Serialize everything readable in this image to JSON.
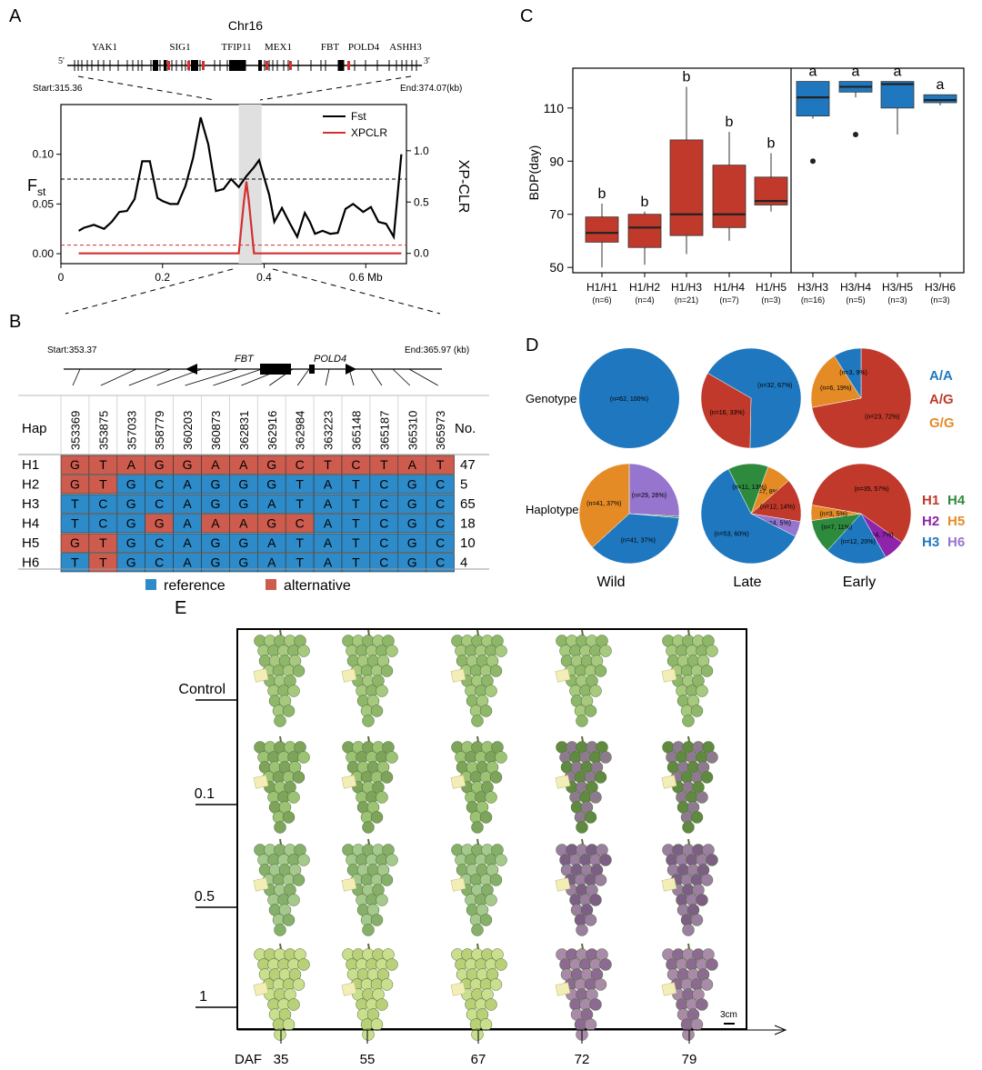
{
  "panels": {
    "A": "A",
    "B": "B",
    "C": "C",
    "D": "D",
    "E": "E"
  },
  "colors": {
    "fst": "#000000",
    "xpclr": "#d32f2f",
    "ref": "#2e8bc9",
    "alt": "#cd5c4e",
    "box_h1": "#c0392b",
    "box_h3": "#1f78bf",
    "H1": "#c0392b",
    "H2": "#8e24aa",
    "H3": "#1f78bf",
    "H4": "#2e8b3e",
    "H5": "#e58b26",
    "H6": "#9575cd",
    "AA": "#1f78bf",
    "AG": "#c0392b",
    "GG": "#e58b26"
  },
  "panelA": {
    "chrom": "Chr16",
    "five": "5'",
    "three": "3'",
    "genes": [
      "YAK1",
      "SIG1",
      "TFIP11",
      "MEX1",
      "FBT",
      "POLD4",
      "ASHH3"
    ],
    "start": "Start:315.36",
    "end": "End:374.07(kb)",
    "ylabel_left": "F",
    "ylabel_left_sub": "st",
    "ylabel_right": "XP-CLR",
    "x_ticks": [
      "0",
      "0.2",
      "0.4",
      "0.6 Mb"
    ],
    "y_left_ticks": [
      "0.00",
      "0.05",
      "0.10"
    ],
    "y_right_ticks": [
      "0.0",
      "0.5",
      "1.0"
    ],
    "legend": [
      "Fst",
      "XPCLR"
    ]
  },
  "panelB": {
    "start": "Start:353.37",
    "end": "End:365.97 (kb)",
    "genes": [
      "FBT",
      "POLD4"
    ],
    "hap_header": "Hap",
    "no_header": "No.",
    "positions": [
      "353369",
      "353875",
      "357033",
      "358779",
      "360203",
      "360873",
      "362831",
      "362916",
      "362984",
      "363223",
      "365148",
      "365187",
      "365310",
      "365973"
    ],
    "haplotypes": [
      {
        "name": "H1",
        "bases": [
          "G",
          "T",
          "A",
          "G",
          "G",
          "A",
          "A",
          "G",
          "C",
          "T",
          "C",
          "T",
          "A",
          "T"
        ],
        "alt": [
          1,
          1,
          1,
          1,
          1,
          1,
          1,
          1,
          1,
          1,
          1,
          1,
          1,
          1
        ],
        "count": "47"
      },
      {
        "name": "H2",
        "bases": [
          "G",
          "T",
          "G",
          "C",
          "A",
          "G",
          "G",
          "G",
          "T",
          "A",
          "T",
          "C",
          "G",
          "C"
        ],
        "alt": [
          1,
          1,
          0,
          0,
          0,
          0,
          0,
          0,
          0,
          0,
          0,
          0,
          0,
          0
        ],
        "count": "5"
      },
      {
        "name": "H3",
        "bases": [
          "T",
          "C",
          "G",
          "C",
          "A",
          "G",
          "G",
          "A",
          "T",
          "A",
          "T",
          "C",
          "G",
          "C"
        ],
        "alt": [
          0,
          0,
          0,
          0,
          0,
          0,
          0,
          0,
          0,
          0,
          0,
          0,
          0,
          0
        ],
        "count": "65"
      },
      {
        "name": "H4",
        "bases": [
          "T",
          "C",
          "G",
          "G",
          "A",
          "A",
          "A",
          "G",
          "C",
          "A",
          "T",
          "C",
          "G",
          "C"
        ],
        "alt": [
          0,
          0,
          0,
          1,
          0,
          1,
          1,
          1,
          1,
          0,
          0,
          0,
          0,
          0
        ],
        "count": "18"
      },
      {
        "name": "H5",
        "bases": [
          "G",
          "T",
          "G",
          "C",
          "A",
          "G",
          "G",
          "A",
          "T",
          "A",
          "T",
          "C",
          "G",
          "C"
        ],
        "alt": [
          1,
          1,
          0,
          0,
          0,
          0,
          0,
          0,
          0,
          0,
          0,
          0,
          0,
          0
        ],
        "count": "10"
      },
      {
        "name": "H6",
        "bases": [
          "T",
          "T",
          "G",
          "C",
          "A",
          "G",
          "G",
          "A",
          "T",
          "A",
          "T",
          "C",
          "G",
          "C"
        ],
        "alt": [
          0,
          1,
          0,
          0,
          0,
          0,
          0,
          0,
          0,
          0,
          0,
          0,
          0,
          0
        ],
        "count": "4"
      }
    ],
    "legend_ref": "reference",
    "legend_alt": "alternative"
  },
  "panelD": {
    "row_genotype": "Genotype",
    "row_haplotype": "Haplotype",
    "columns": [
      "Wild",
      "Late",
      "Early"
    ],
    "genotype_legend": [
      "A/A",
      "A/G",
      "G/G"
    ],
    "haplotype_legend": [
      "H1",
      "H4",
      "H2",
      "H5",
      "H3",
      "H6"
    ]
  },
  "panelE": {
    "rows": [
      "Control",
      "0.1",
      "0.5",
      "1"
    ],
    "daf_label": "DAF",
    "days": [
      "35",
      "55",
      "67",
      "72",
      "79"
    ],
    "scale": "3cm"
  },
  "chart_data": [
    {
      "type": "line",
      "panel": "A",
      "xlabel": "",
      "xlim": [
        0,
        0.68
      ],
      "ylim_left": [
        -0.01,
        0.15
      ],
      "ylim_right": [
        -0.1,
        1.45
      ],
      "ylabel": "Fst",
      "ylabel_right": "XP-CLR",
      "highlight": [
        0.35,
        0.395
      ],
      "fst_threshold": 0.075,
      "xpclr_threshold": 0.08,
      "series": [
        {
          "name": "Fst",
          "axis": "left",
          "x": [
            0.035,
            0.045,
            0.065,
            0.085,
            0.1,
            0.115,
            0.13,
            0.145,
            0.16,
            0.175,
            0.19,
            0.2,
            0.215,
            0.23,
            0.245,
            0.26,
            0.275,
            0.29,
            0.305,
            0.32,
            0.335,
            0.35,
            0.365,
            0.38,
            0.39,
            0.41,
            0.42,
            0.435,
            0.45,
            0.465,
            0.48,
            0.49,
            0.5,
            0.515,
            0.53,
            0.545,
            0.56,
            0.575,
            0.595,
            0.61,
            0.625,
            0.64,
            0.655,
            0.67
          ],
          "y": [
            0.023,
            0.026,
            0.029,
            0.025,
            0.032,
            0.042,
            0.043,
            0.055,
            0.093,
            0.093,
            0.056,
            0.053,
            0.05,
            0.05,
            0.068,
            0.096,
            0.137,
            0.11,
            0.063,
            0.065,
            0.075,
            0.067,
            0.078,
            0.087,
            0.094,
            0.059,
            0.032,
            0.046,
            0.031,
            0.017,
            0.041,
            0.032,
            0.02,
            0.023,
            0.02,
            0.021,
            0.045,
            0.05,
            0.042,
            0.047,
            0.032,
            0.03,
            0.017,
            0.1
          ]
        },
        {
          "name": "XPCLR",
          "axis": "right",
          "x": [
            0.035,
            0.34,
            0.35,
            0.36,
            0.365,
            0.37,
            0.38,
            0.39,
            0.67
          ],
          "y": [
            0.0,
            0.0,
            0.0,
            0.5,
            0.7,
            0.5,
            0.0,
            0.0,
            0.0
          ]
        }
      ]
    },
    {
      "type": "box",
      "panel": "C",
      "ylabel": "BDP(day)",
      "ylim": [
        48,
        125
      ],
      "y_ticks": [
        50,
        70,
        90,
        110
      ],
      "categories": [
        "H1/H1",
        "H1/H2",
        "H1/H3",
        "H1/H4",
        "H1/H5",
        "H3/H3",
        "H3/H4",
        "H3/H5",
        "H3/H6"
      ],
      "n": [
        "(n=6)",
        "(n=4)",
        "(n=21)",
        "(n=7)",
        "(n=3)",
        "(n=16)",
        "(n=5)",
        "(n=3)",
        "(n=3)"
      ],
      "letters": [
        "b",
        "b",
        "b",
        "b",
        "b",
        "a",
        "a",
        "a",
        "a"
      ],
      "groups": [
        "H1",
        "H1",
        "H1",
        "H1",
        "H1",
        "H3",
        "H3",
        "H3",
        "H3"
      ],
      "q1": [
        59.5,
        57.5,
        62,
        65,
        73.5,
        107,
        116,
        110,
        112
      ],
      "median": [
        63,
        65,
        70,
        70,
        75,
        114,
        118,
        119,
        113
      ],
      "q3": [
        69,
        70,
        98,
        88.5,
        84,
        120,
        120,
        120,
        115
      ],
      "lower_whisker": [
        50,
        51,
        55,
        60,
        71,
        106,
        114,
        100,
        111
      ],
      "upper_whisker": [
        74,
        71,
        118,
        101,
        93,
        120,
        120,
        120,
        115
      ],
      "outliers": [
        [],
        [],
        [],
        [],
        [],
        [
          90
        ],
        [
          100
        ],
        [],
        []
      ]
    },
    {
      "type": "pie",
      "panel": "D",
      "row": "Genotype",
      "pies": [
        {
          "name": "Wild",
          "slices": [
            {
              "label": "A/A",
              "value": 100,
              "text": "(n=62, 100%)"
            }
          ]
        },
        {
          "name": "Late",
          "slices": [
            {
              "label": "A/A",
              "value": 67,
              "text": "(n=32, 67%)"
            },
            {
              "label": "A/G",
              "value": 33,
              "text": "(n=16, 33%)"
            }
          ]
        },
        {
          "name": "Early",
          "slices": [
            {
              "label": "A/G",
              "value": 72,
              "text": "(n=23, 72%)"
            },
            {
              "label": "G/G",
              "value": 19,
              "text": "(n=6, 19%)"
            },
            {
              "label": "A/A",
              "value": 9,
              "text": "(n=3, 9%)"
            }
          ]
        }
      ]
    },
    {
      "type": "pie",
      "panel": "D",
      "row": "Haplotype",
      "pies": [
        {
          "name": "Wild",
          "slices": [
            {
              "label": "H6",
              "value": 26,
              "text": "(n=29, 26%)"
            },
            {
              "label": "H4",
              "value": 0.5,
              "text": ""
            },
            {
              "label": "H3",
              "value": 37,
              "text": "(n=41, 37%)"
            },
            {
              "label": "H5",
              "value": 37,
              "text": "(n=41, 37%)"
            }
          ]
        },
        {
          "name": "Late",
          "slices": [
            {
              "label": "H5",
              "value": 8,
              "text": "(n=7, 8%)"
            },
            {
              "label": "H1",
              "value": 14,
              "text": "(n=12, 14%)"
            },
            {
              "label": "H6",
              "value": 5,
              "text": "(n=4, 5%)"
            },
            {
              "label": "H3",
              "value": 60,
              "text": "(n=53, 60%)"
            },
            {
              "label": "H4",
              "value": 13,
              "text": "(n=11, 13%)"
            }
          ]
        },
        {
          "name": "Early",
          "slices": [
            {
              "label": "H1",
              "value": 57,
              "text": "(n=35, 57%)"
            },
            {
              "label": "H2",
              "value": 7,
              "text": "(n=4, 7%)"
            },
            {
              "label": "H3",
              "value": 20,
              "text": "(n=12, 20%)"
            },
            {
              "label": "H4",
              "value": 11,
              "text": "(n=7, 11%)"
            },
            {
              "label": "H5",
              "value": 5,
              "text": "(n=3, 5%)"
            }
          ]
        }
      ]
    }
  ]
}
